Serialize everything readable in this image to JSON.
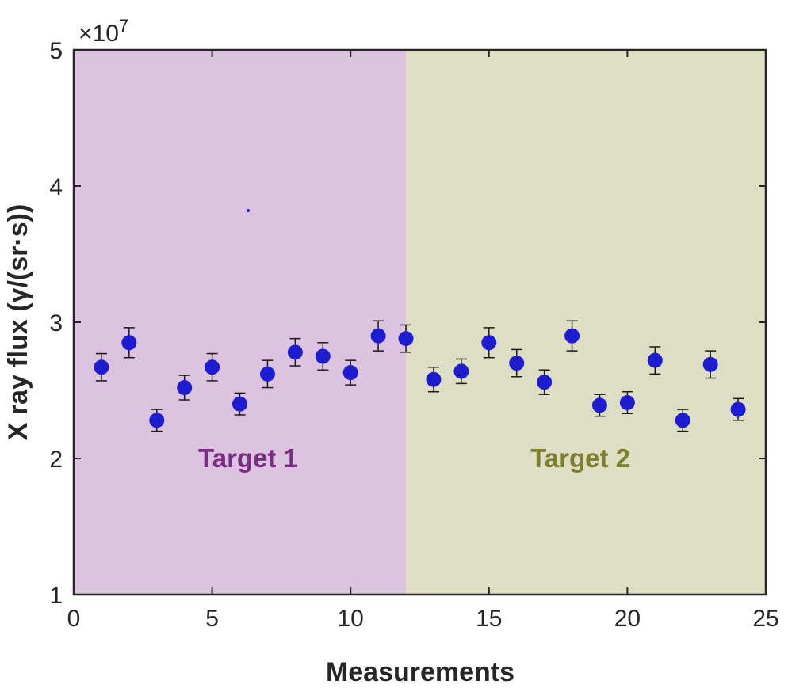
{
  "chart_data": {
    "type": "scatter",
    "title": "",
    "xlabel": "Measurements",
    "ylabel": "X ray flux (γ/(sr·s))",
    "y_multiplier_label": {
      "base": "×10",
      "exponent": "7"
    },
    "xlim": [
      0,
      25
    ],
    "ylim": [
      1,
      5
    ],
    "xticks": [
      0,
      5,
      10,
      15,
      20,
      25
    ],
    "yticks": [
      1,
      2,
      3,
      4,
      5
    ],
    "grid": false,
    "regions": [
      {
        "label": "Target 1",
        "x_range": [
          0,
          12
        ],
        "fill": "#dcc3df",
        "text_color": "#7b2c84"
      },
      {
        "label": "Target 2",
        "x_range": [
          12,
          25
        ],
        "fill": "#dedec4",
        "text_color": "#7e7f2a"
      }
    ],
    "marker_color": "#1e1ccf",
    "errorbar_color": "#1a1a1a",
    "series": [
      {
        "x": [
          1,
          2,
          3,
          4,
          5,
          6,
          7,
          8,
          9,
          10,
          11,
          12,
          13,
          14,
          15,
          16,
          17,
          18,
          19,
          20,
          21,
          22,
          23,
          24
        ],
        "y": [
          2.67,
          2.85,
          2.28,
          2.52,
          2.67,
          2.4,
          2.62,
          2.78,
          2.75,
          2.63,
          2.9,
          2.88,
          2.58,
          2.64,
          2.85,
          2.7,
          2.56,
          2.9,
          2.39,
          2.41,
          2.72,
          2.28,
          2.69,
          2.36
        ],
        "err": [
          0.1,
          0.11,
          0.08,
          0.09,
          0.1,
          0.08,
          0.1,
          0.1,
          0.1,
          0.09,
          0.11,
          0.1,
          0.09,
          0.09,
          0.11,
          0.1,
          0.09,
          0.11,
          0.08,
          0.08,
          0.1,
          0.08,
          0.1,
          0.08
        ]
      }
    ],
    "stray_point": {
      "x": 6.3,
      "y": 3.82
    }
  }
}
